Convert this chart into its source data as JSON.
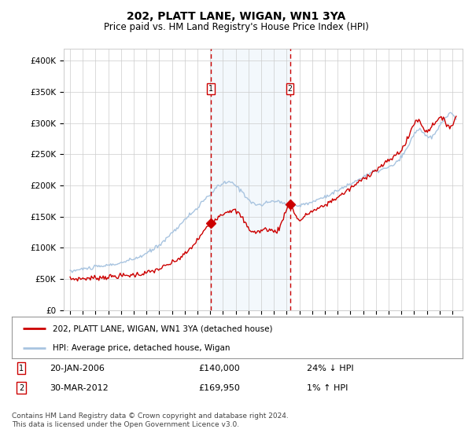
{
  "title": "202, PLATT LANE, WIGAN, WN1 3YA",
  "subtitle": "Price paid vs. HM Land Registry's House Price Index (HPI)",
  "title_fontsize": 10,
  "subtitle_fontsize": 8.5,
  "background_color": "#ffffff",
  "grid_color": "#cccccc",
  "plot_bg_color": "#ffffff",
  "ylim": [
    0,
    420000
  ],
  "yticks": [
    0,
    50000,
    100000,
    150000,
    200000,
    250000,
    300000,
    350000,
    400000
  ],
  "ytick_labels": [
    "£0",
    "£50K",
    "£100K",
    "£150K",
    "£200K",
    "£250K",
    "£300K",
    "£350K",
    "£400K"
  ],
  "hpi_color": "#a8c4e0",
  "price_color": "#cc0000",
  "vline_color": "#cc0000",
  "vline_style": "--",
  "shade_color": "#d8eaf8",
  "legend_entries": [
    "202, PLATT LANE, WIGAN, WN1 3YA (detached house)",
    "HPI: Average price, detached house, Wigan"
  ],
  "legend_colors": [
    "#cc0000",
    "#a8c4e0"
  ],
  "sale1_date": "20-JAN-2006",
  "sale1_price": "£140,000",
  "sale1_hpi": "24% ↓ HPI",
  "sale2_date": "30-MAR-2012",
  "sale2_price": "£169,950",
  "sale2_hpi": "1% ↑ HPI",
  "footer": "Contains HM Land Registry data © Crown copyright and database right 2024.\nThis data is licensed under the Open Government Licence v3.0.",
  "vline1_x": 2006.05,
  "vline2_x": 2012.25,
  "sale1_y": 140000,
  "sale2_y": 169950,
  "xtick_years": [
    1995,
    1996,
    1997,
    1998,
    1999,
    2000,
    2001,
    2002,
    2003,
    2004,
    2005,
    2006,
    2007,
    2008,
    2009,
    2010,
    2011,
    2012,
    2013,
    2014,
    2015,
    2016,
    2017,
    2018,
    2019,
    2020,
    2021,
    2022,
    2023,
    2024,
    2025
  ],
  "xmin": 1994.5,
  "xmax": 2025.8
}
